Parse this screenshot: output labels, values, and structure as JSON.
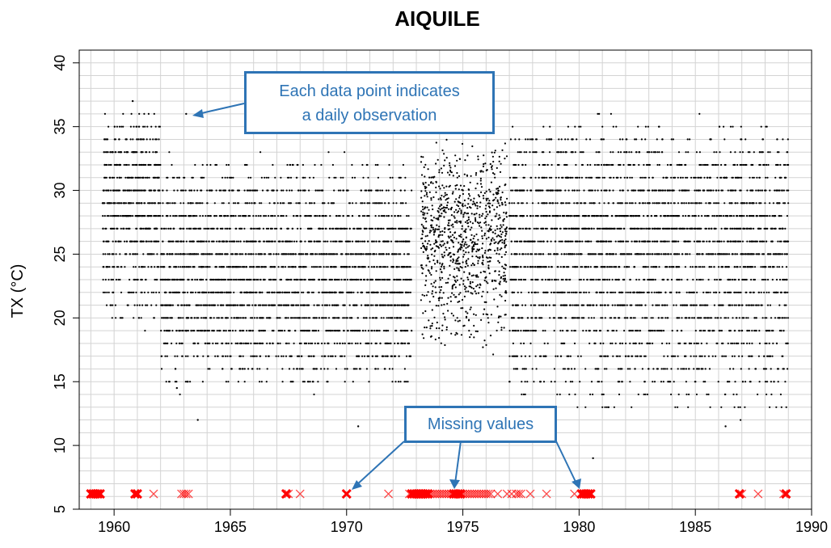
{
  "chart_data": {
    "type": "scatter",
    "title": "AIQUILE",
    "xlabel": "",
    "ylabel": "TX (°C)",
    "xlim": [
      1958.5,
      1990
    ],
    "ylim": [
      5,
      41
    ],
    "x_ticks": [
      1960,
      1965,
      1970,
      1975,
      1980,
      1985,
      1990
    ],
    "y_ticks": [
      5,
      10,
      15,
      20,
      25,
      30,
      35,
      40
    ],
    "grid": true,
    "series": [
      {
        "kind": "daily observations",
        "color": "#000000",
        "segments": [
          {
            "x_range": [
              1959.5,
              1962.0
            ],
            "y_min": 19,
            "y_max": 37,
            "mode": 30
          },
          {
            "x_range": [
              1962.0,
              1972.8
            ],
            "y_min": 14,
            "y_max": 33,
            "mode": 23
          },
          {
            "x_range": [
              1973.2,
              1976.9
            ],
            "y_min": 17,
            "y_max": 34,
            "mode": 27
          },
          {
            "x_range": [
              1977.0,
              1989.0
            ],
            "y_min": 12,
            "y_max": 36,
            "mode": 27
          }
        ],
        "notable_points": [
          {
            "x": 1960.8,
            "y": 37
          },
          {
            "x": 1963.1,
            "y": 36
          },
          {
            "x": 1962.7,
            "y": 14.5
          },
          {
            "x": 1963.6,
            "y": 12
          },
          {
            "x": 1970.5,
            "y": 11.5
          },
          {
            "x": 1980.6,
            "y": 9
          },
          {
            "x": 1986.3,
            "y": 11.5
          }
        ]
      },
      {
        "kind": "missing values",
        "color": "#ff0000",
        "y": 6.2,
        "x": [
          1959.0,
          1959.1,
          1959.2,
          1959.3,
          1959.4,
          1960.9,
          1961.0,
          1961.7,
          1962.9,
          1963.0,
          1963.1,
          1963.2,
          1967.4,
          1967.5,
          1968.0,
          1970.0,
          1971.8,
          1972.7,
          1972.8,
          1972.9,
          1973.0,
          1973.1,
          1973.2,
          1973.3,
          1973.4,
          1973.5,
          1973.6,
          1973.7,
          1973.8,
          1973.9,
          1974.0,
          1974.1,
          1974.2,
          1974.3,
          1974.4,
          1974.5,
          1974.6,
          1974.7,
          1974.8,
          1974.9,
          1975.0,
          1975.1,
          1975.2,
          1975.3,
          1975.4,
          1975.5,
          1975.6,
          1975.7,
          1975.8,
          1975.9,
          1976.0,
          1976.1,
          1976.2,
          1976.5,
          1976.9,
          1977.1,
          1977.3,
          1977.4,
          1977.5,
          1977.9,
          1978.6,
          1979.8,
          1980.1,
          1980.2,
          1980.3,
          1980.4,
          1980.5,
          1986.9,
          1987.0,
          1987.7,
          1988.8,
          1988.9
        ],
        "bold": [
          1959.0,
          1959.1,
          1959.2,
          1959.3,
          1959.4,
          1960.9,
          1961.0,
          1967.4,
          1970.0,
          1972.8,
          1972.9,
          1973.0,
          1973.1,
          1973.2,
          1973.3,
          1973.4,
          1973.5,
          1974.6,
          1974.7,
          1974.8,
          1974.9,
          1980.1,
          1980.2,
          1980.3,
          1980.4,
          1980.5,
          1986.9,
          1988.9
        ]
      }
    ],
    "annotations": [
      {
        "text": "Each data point indicates\na daily observation"
      },
      {
        "text": "Missing values"
      }
    ]
  },
  "callouts": {
    "daily_line1": "Each data point indicates",
    "daily_line2": "a daily observation",
    "missing": "Missing values"
  },
  "colors": {
    "callout": "#2e74b5",
    "missing": "#ff0000",
    "points": "#000000",
    "grid": "#d3d3d3"
  }
}
